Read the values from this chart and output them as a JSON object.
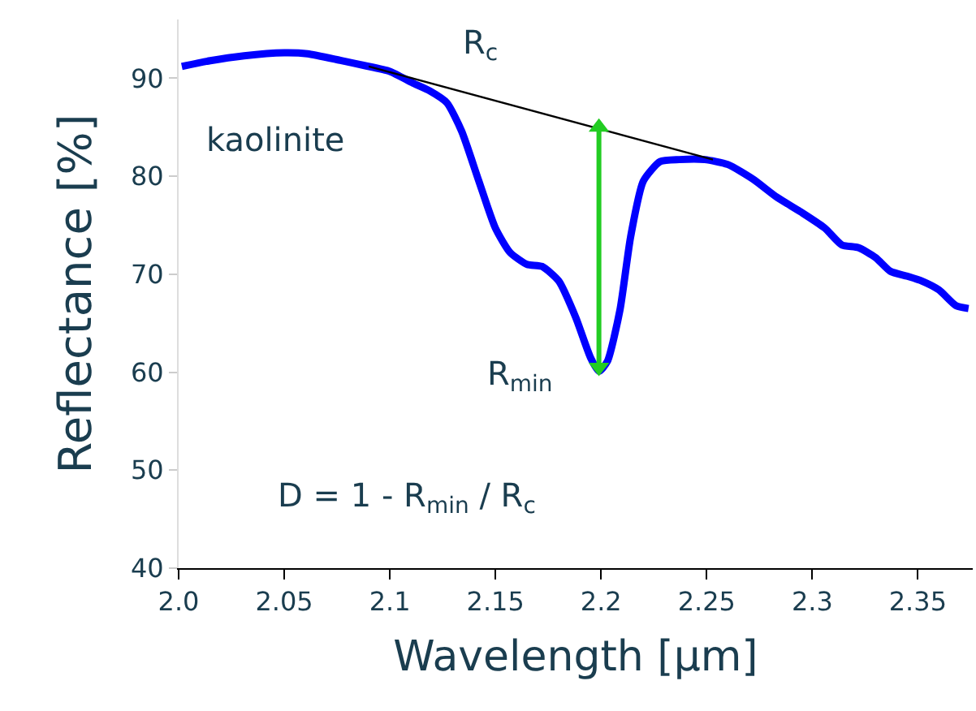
{
  "chart_data": {
    "type": "line",
    "xlabel": "Wavelength [µm]",
    "ylabel": "Reflectance [%]",
    "xlim": [
      2.0,
      2.376
    ],
    "ylim": [
      40,
      96
    ],
    "xticks": [
      {
        "value": 2.0,
        "label": "2.0"
      },
      2.05,
      {
        "value": 2.1,
        "label": "2.1"
      },
      2.15,
      {
        "value": 2.2,
        "label": "2.2"
      },
      2.25,
      {
        "value": 2.3,
        "label": "2.3"
      },
      2.35
    ],
    "yticks": [
      40,
      50,
      60,
      70,
      80,
      90
    ],
    "marker": "none",
    "line_style": "solid",
    "series": [
      {
        "color": "#0000ff",
        "x": [
          2.0015,
          2.015,
          2.031,
          2.05,
          2.061,
          2.077,
          2.088,
          2.1,
          2.111,
          2.119,
          2.127,
          2.134,
          2.142,
          2.15,
          2.157,
          2.165,
          2.172,
          2.18,
          2.188,
          2.195,
          2.199,
          2.203,
          2.209,
          2.214,
          2.22,
          2.228,
          2.237,
          2.249,
          2.26,
          2.272,
          2.283,
          2.295,
          2.306,
          2.314,
          2.322,
          2.33,
          2.337,
          2.345,
          2.352,
          2.36,
          2.368,
          2.374
        ],
        "values": [
          91.2,
          91.8,
          92.3,
          92.6,
          92.5,
          91.8,
          91.3,
          90.7,
          89.5,
          88.7,
          87.5,
          84.6,
          79.6,
          74.7,
          72.2,
          71.0,
          70.8,
          69.3,
          65.6,
          61.5,
          60.1,
          61.1,
          66.4,
          73.8,
          79.5,
          81.5,
          81.7,
          81.7,
          81.2,
          79.7,
          77.9,
          76.3,
          74.7,
          73.0,
          72.7,
          71.7,
          70.3,
          69.8,
          69.3,
          68.4,
          66.8,
          66.5
        ]
      },
      {
        "color": "#000000",
        "x": [
          2.09,
          2.253
        ],
        "values": [
          91.2,
          81.7
        ]
      },
      {
        "color": "#22cc22",
        "x": [
          2.199,
          2.199
        ],
        "values": [
          85,
          60.5
        ],
        "marker": "triangle"
      }
    ],
    "annotations": [
      "R$_{c}$",
      "kaolinite",
      "R$_{min}$",
      "D = 1 - R$_{min}$ / R$_{c}$"
    ]
  }
}
